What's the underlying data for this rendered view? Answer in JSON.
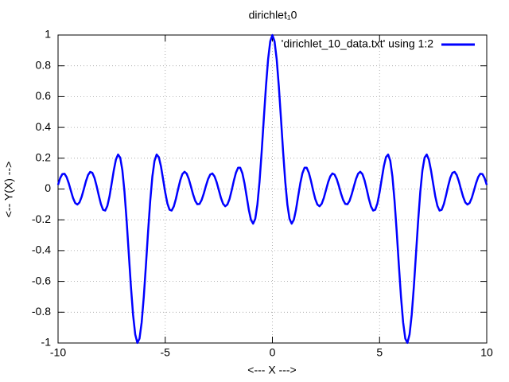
{
  "chart_data": {
    "type": "line",
    "title": "dirichlet₁0",
    "x_label": "<--- X --->",
    "y_label": "<-- Y(X) -->",
    "xlim": [
      -10,
      10
    ],
    "ylim": [
      -1,
      1
    ],
    "xticks": [
      -10,
      -5,
      0,
      5,
      10
    ],
    "yticks": [
      -1,
      -0.8,
      -0.6,
      -0.4,
      -0.2,
      0,
      0.2,
      0.4,
      0.6,
      0.8,
      1
    ],
    "grid": true,
    "legend": "top-right",
    "x": [
      -10,
      -9.9,
      -9.8,
      -9.7,
      -9.6,
      -9.5,
      -9.4,
      -9.3,
      -9.2,
      -9.1,
      -9,
      -8.9,
      -8.8,
      -8.7,
      -8.6,
      -8.5,
      -8.4,
      -8.3,
      -8.2,
      -8.1,
      -8,
      -7.9,
      -7.8,
      -7.7,
      -7.6,
      -7.5,
      -7.4,
      -7.3,
      -7.2,
      -7.1,
      -7,
      -6.9,
      -6.8,
      -6.7,
      -6.6,
      -6.5,
      -6.4,
      -6.3,
      -6.2,
      -6.1,
      -6,
      -5.9,
      -5.8,
      -5.7,
      -5.6,
      -5.5,
      -5.4,
      -5.3,
      -5.2,
      -5.1,
      -5,
      -4.9,
      -4.8,
      -4.7,
      -4.6,
      -4.5,
      -4.4,
      -4.3,
      -4.2,
      -4.1,
      -4,
      -3.9,
      -3.8,
      -3.7,
      -3.6,
      -3.5,
      -3.4,
      -3.3,
      -3.2,
      -3.1,
      -3,
      -2.9,
      -2.8,
      -2.7,
      -2.6,
      -2.5,
      -2.4,
      -2.3,
      -2.2,
      -2.1,
      -2,
      -1.9,
      -1.8,
      -1.7,
      -1.6,
      -1.5,
      -1.4,
      -1.3,
      -1.2,
      -1.1,
      -1,
      -0.9,
      -0.8,
      -0.7,
      -0.6,
      -0.5,
      -0.4,
      -0.3,
      -0.2,
      -0.1,
      0,
      0.1,
      0.2,
      0.3,
      0.4,
      0.5,
      0.6,
      0.7,
      0.8,
      0.9,
      1,
      1.1,
      1.2,
      1.3,
      1.4,
      1.5,
      1.6,
      1.7,
      1.8,
      1.9,
      2,
      2.1,
      2.2,
      2.3,
      2.4,
      2.5,
      2.6,
      2.7,
      2.8,
      2.9,
      3,
      3.1,
      3.2,
      3.3,
      3.4,
      3.5,
      3.6,
      3.7,
      3.8,
      3.9,
      4,
      4.1,
      4.2,
      4.3,
      4.4,
      4.5,
      4.6,
      4.7,
      4.8,
      4.9,
      5,
      5.1,
      5.2,
      5.3,
      5.4,
      5.5,
      5.6,
      5.7,
      5.8,
      5.9,
      6,
      6.1,
      6.2,
      6.3,
      6.4,
      6.5,
      6.6,
      6.7,
      6.8,
      6.9,
      7,
      7.1,
      7.2,
      7.3,
      7.4,
      7.5,
      7.6,
      7.7,
      7.8,
      7.9,
      8,
      8.1,
      8.2,
      8.3,
      8.4,
      8.5,
      8.6,
      8.7,
      8.8,
      8.9,
      9,
      9.1,
      9.2,
      9.3,
      9.4,
      9.5,
      9.6,
      9.7,
      9.8,
      9.9,
      10
    ],
    "series": [
      {
        "name": "'dirichlet_10_data.txt' using 1:2",
        "color": "#0000ff",
        "values": [
          0.027,
          0.071,
          0.097,
          0.099,
          0.077,
          0.037,
          -0.012,
          -0.059,
          -0.091,
          -0.101,
          -0.087,
          -0.051,
          -0.002,
          0.05,
          0.091,
          0.111,
          0.105,
          0.072,
          0.019,
          -0.042,
          -0.098,
          -0.135,
          -0.14,
          -0.11,
          -0.048,
          0.035,
          0.121,
          0.191,
          0.224,
          0.204,
          0.122,
          -0.019,
          -0.207,
          -0.421,
          -0.634,
          -0.817,
          -0.944,
          -0.999,
          -0.971,
          -0.867,
          -0.7,
          -0.494,
          -0.277,
          -0.078,
          0.081,
          0.183,
          0.224,
          0.207,
          0.148,
          0.064,
          -0.022,
          -0.093,
          -0.134,
          -0.14,
          -0.113,
          -0.063,
          -0.001,
          0.056,
          0.097,
          0.112,
          0.1,
          0.065,
          0.016,
          -0.035,
          -0.077,
          -0.099,
          -0.097,
          -0.071,
          -0.029,
          0.021,
          0.065,
          0.094,
          0.101,
          0.082,
          0.044,
          -0.007,
          -0.058,
          -0.096,
          -0.112,
          -0.101,
          -0.065,
          -0.009,
          0.053,
          0.106,
          0.138,
          0.138,
          0.102,
          0.036,
          -0.049,
          -0.135,
          -0.2,
          -0.225,
          -0.194,
          -0.102,
          0.048,
          0.242,
          0.458,
          0.667,
          0.843,
          0.959,
          1,
          0.959,
          0.843,
          0.667,
          0.458,
          0.242,
          0.048,
          -0.102,
          -0.194,
          -0.225,
          -0.2,
          -0.135,
          -0.049,
          0.036,
          0.102,
          0.138,
          0.138,
          0.106,
          0.053,
          -0.009,
          -0.065,
          -0.101,
          -0.112,
          -0.096,
          -0.058,
          -0.007,
          0.044,
          0.082,
          0.101,
          0.094,
          0.065,
          0.021,
          -0.029,
          -0.071,
          -0.097,
          -0.099,
          -0.077,
          -0.035,
          0.016,
          0.065,
          0.1,
          0.112,
          0.097,
          0.056,
          -0.001,
          -0.063,
          -0.113,
          -0.14,
          -0.134,
          -0.093,
          -0.022,
          0.064,
          0.148,
          0.207,
          0.224,
          0.183,
          0.081,
          -0.078,
          -0.277,
          -0.494,
          -0.7,
          -0.867,
          -0.971,
          -0.999,
          -0.944,
          -0.817,
          -0.634,
          -0.421,
          -0.207,
          -0.019,
          0.122,
          0.204,
          0.224,
          0.191,
          0.121,
          0.035,
          -0.048,
          -0.11,
          -0.14,
          -0.135,
          -0.098,
          -0.042,
          0.019,
          0.072,
          0.105,
          0.111,
          0.091,
          0.05,
          -0.002,
          -0.051,
          -0.087,
          -0.101,
          -0.091,
          -0.059,
          -0.012,
          0.037,
          0.077,
          0.099,
          0.097,
          0.071,
          0.027
        ]
      }
    ]
  }
}
